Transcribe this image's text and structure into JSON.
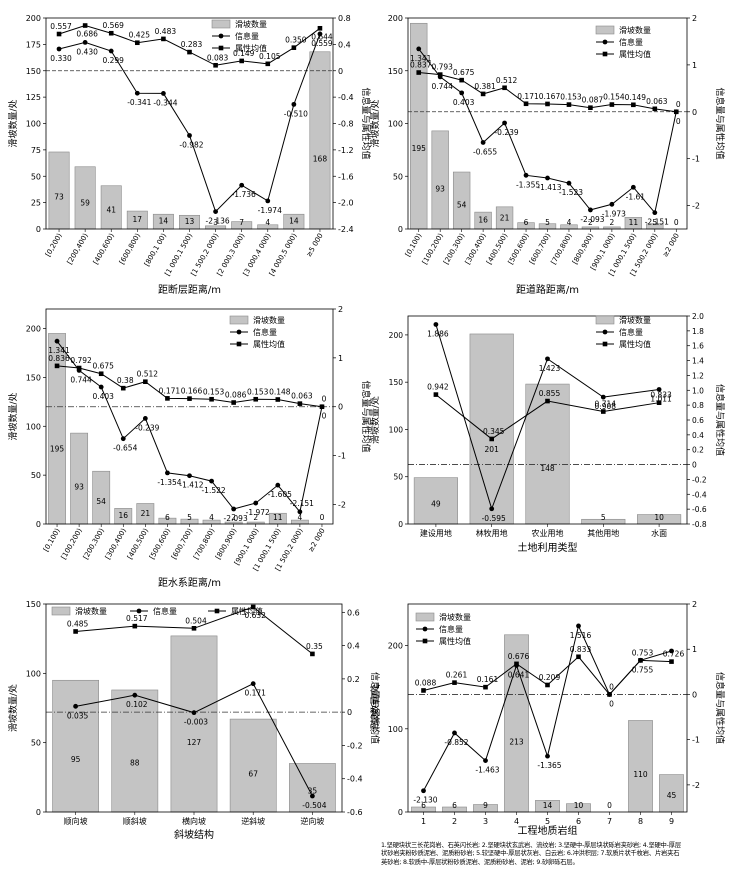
{
  "colors": {
    "bar": "#c4c4c4",
    "bar_stroke": "#8a8a8a",
    "line": "#000000",
    "refline": "#333333",
    "background": "#ffffff"
  },
  "legend_labels": {
    "bar": "滑坡数量",
    "info": "信息量",
    "attr": "属性均值"
  },
  "footnote": "1.坚硬块状三长花岗岩、石英闪长岩; 2.坚硬块状玄武岩、流纹岩; 3.坚硬中-厚层块状砾岩夹砂岩; 4.坚硬中-厚层状砂岩夹粉砂质泥岩、泥质粉砂岩; 5.较坚硬中-厚层状灰岩、白云岩; 6.冲洪积层; 7.软质片状千枚岩、片岩夹石英砂岩; 8.软质中-厚层状粉砂质泥岩、泥质粉砂岩、泥岩; 9.砂卵砾石层。",
  "chart_data": [
    {
      "type": "bar",
      "xlabel": "距断层距离/m",
      "ylabel": "滑坡数量/处",
      "y2label": "信息量与属性均值",
      "ylim": [
        0,
        200
      ],
      "yticks": [
        0,
        25,
        50,
        75,
        100,
        125,
        150,
        175,
        200
      ],
      "y2lim": [
        -2.4,
        0.8
      ],
      "y2ticks": [
        -2.4,
        -2.0,
        -1.6,
        -1.2,
        -0.8,
        -0.4,
        0,
        0.4,
        0.8
      ],
      "y2tick_labels": [
        "-2.4",
        "-2.0",
        "-1.6",
        "-1.2",
        "-0.8",
        "-0.4",
        "0",
        "0.4",
        "0.8"
      ],
      "legend_position": "top-right",
      "categories": [
        "[0,200)",
        "[200,400)",
        "[400,600)",
        "[600,800)",
        "[800,1 00)",
        "[1 000,1 500)",
        "[1 500,2 000)",
        "[2 000,3 000)",
        "[3 000,4 000)",
        "[4 000,5 000)",
        "≥5 000"
      ],
      "bar_values": [
        73,
        59,
        41,
        17,
        14,
        13,
        3,
        7,
        4,
        14,
        168
      ],
      "bar_value_labels": [
        "73",
        "59",
        "41",
        "17",
        "14",
        "13",
        "3",
        "7",
        "4",
        "14",
        "168"
      ],
      "info_values": [
        0.33,
        0.43,
        0.299,
        -0.341,
        -0.344,
        -0.982,
        -2.136,
        -1.736,
        -1.974,
        -0.51,
        0.559
      ],
      "info_labels": [
        "0.330",
        "0.430",
        "0.299",
        "-0.341",
        "-0.344",
        "-0.982",
        "-2.136",
        "-1.736",
        "-1.974",
        "-0.510",
        "0.559"
      ],
      "attr_values": [
        0.557,
        0.686,
        0.569,
        0.425,
        0.483,
        0.283,
        0.083,
        0.149,
        0.105,
        0.35,
        0.644
      ],
      "attr_labels": [
        "0.557",
        "0.686",
        "0.569",
        "0.425",
        "0.483",
        "0.283",
        "0.083",
        "0.149",
        "0.105",
        "0.350",
        "0.644"
      ],
      "ref_y2": 0
    },
    {
      "type": "bar",
      "xlabel": "距道路距离/m",
      "ylabel": "滑坡数量/处",
      "y2label": "信息量与属性均值",
      "ylim": [
        0,
        200
      ],
      "yticks": [
        0,
        50,
        100,
        150,
        200
      ],
      "y2lim": [
        -2.5,
        2
      ],
      "y2ticks": [
        -2,
        -1,
        0,
        1,
        2
      ],
      "y2tick_labels": [
        "-2",
        "-1",
        "0",
        "1",
        "2"
      ],
      "legend_position": "top-right",
      "categories": [
        "[0,100)",
        "[100,200)",
        "[200,300)",
        "[300,400)",
        "[400,500)",
        "[500,600)",
        "[600,700)",
        "[700,800)",
        "[800,900)",
        "[900,1 000)",
        "[1 000,1 500)",
        "[1 500,2 000)",
        "≥2 000"
      ],
      "bar_values": [
        195,
        93,
        54,
        16,
        21,
        6,
        5,
        4,
        2,
        2,
        11,
        5,
        0
      ],
      "bar_value_labels": [
        "195",
        "93",
        "54",
        "16",
        "21",
        "6",
        "5",
        "4",
        "2",
        "2",
        "11",
        "5",
        "0"
      ],
      "info_values": [
        1.341,
        0.744,
        0.403,
        -0.655,
        -0.239,
        -1.355,
        -1.413,
        -1.523,
        -2.093,
        -1.973,
        -1.61,
        -2.151,
        0
      ],
      "info_labels": [
        "1.341",
        "0.744",
        "0.403",
        "-0.655",
        "-0.239",
        "-1.355",
        "-1.413",
        "-1.523",
        "-2.093",
        "-1.973",
        "-1.61",
        "-2.151",
        "0"
      ],
      "attr_values": [
        0.837,
        0.793,
        0.675,
        0.381,
        0.512,
        0.171,
        0.167,
        0.153,
        0.087,
        0.154,
        0.149,
        0.063,
        0
      ],
      "attr_labels": [
        "0.837",
        "0.793",
        "0.675",
        "0.381",
        "0.512",
        "0.171",
        "0.167",
        "0.153",
        "0.087",
        "0.154",
        "0.149",
        "0.063",
        "0"
      ],
      "ref_y2": 0
    },
    {
      "type": "bar",
      "xlabel": "距水系距离/m",
      "ylabel": "滑坡数量/处",
      "y2label": "信息量与属性均值",
      "ylim": [
        0,
        220
      ],
      "yticks": [
        0,
        50,
        100,
        150,
        200
      ],
      "y2lim": [
        -2.4,
        2
      ],
      "y2ticks": [
        -2,
        -1,
        0,
        1,
        2
      ],
      "y2tick_labels": [
        "-2",
        "-1",
        "0",
        "1",
        "2"
      ],
      "legend_position": "top-right",
      "categories": [
        "[0,100)",
        "[100,200)",
        "[200,300)",
        "[300,400)",
        "[400,500)",
        "[500,600)",
        "[600,700)",
        "[700,800)",
        "[800,900)",
        "[900,1 000)",
        "[1 000,1 500)",
        "[1 500,2 000)",
        "≥2 000"
      ],
      "bar_values": [
        195,
        93,
        54,
        16,
        21,
        6,
        5,
        4,
        2,
        2,
        11,
        4,
        0
      ],
      "bar_value_labels": [
        "195",
        "93",
        "54",
        "16",
        "21",
        "6",
        "5",
        "4",
        "2",
        "2",
        "11",
        "4",
        "0"
      ],
      "info_values": [
        1.341,
        0.744,
        0.403,
        -0.654,
        -0.239,
        -1.354,
        -1.412,
        -1.522,
        -2.093,
        -1.972,
        -1.605,
        -2.151,
        0
      ],
      "info_labels": [
        "1.341",
        "0.744",
        "0.403",
        "-0.654",
        "-0.239",
        "-1.354",
        "-1.412",
        "-1.522",
        "-2.093",
        "-1.972",
        "-1.605",
        "-2.151",
        "0"
      ],
      "attr_values": [
        0.836,
        0.792,
        0.675,
        0.38,
        0.512,
        0.171,
        0.166,
        0.153,
        0.086,
        0.153,
        0.148,
        0.063,
        0
      ],
      "attr_labels": [
        "0.836",
        "0.792",
        "0.675",
        "0.38",
        "0.512",
        "0.171",
        "0.166",
        "0.153",
        "0.086",
        "0.153",
        "0.148",
        "0.063",
        "0"
      ],
      "ref_y2": 0
    },
    {
      "type": "bar",
      "xlabel": "土地利用类型",
      "ylabel": "滑坡数量/处",
      "y2label": "信息量与属性均值",
      "ylim": [
        0,
        220
      ],
      "yticks": [
        0,
        50,
        100,
        150,
        200
      ],
      "y2lim": [
        -0.8,
        2.0
      ],
      "y2ticks": [
        -0.8,
        -0.6,
        -0.4,
        -0.2,
        0,
        0.2,
        0.4,
        0.6,
        0.8,
        1.0,
        1.2,
        1.4,
        1.6,
        1.8,
        2.0
      ],
      "y2tick_labels": [
        "-0.8",
        "-0.6",
        "-0.4",
        "-0.2",
        "0",
        "0.2",
        "0.4",
        "0.6",
        "0.8",
        "1.0",
        "1.2",
        "1.4",
        "1.6",
        "1.8",
        "2.0"
      ],
      "legend_position": "top-right",
      "categories": [
        "建设用地",
        "林牧用地",
        "农业用地",
        "其他用地",
        "水面"
      ],
      "bar_values": [
        49,
        201,
        148,
        5,
        10
      ],
      "bar_value_labels": [
        "49",
        "201",
        "148",
        "5",
        "10"
      ],
      "info_values": [
        1.886,
        -0.595,
        1.423,
        0.908,
        1.011
      ],
      "info_labels": [
        "1.886",
        "-0.595",
        "1.423",
        "0.908",
        "1.011"
      ],
      "attr_values": [
        0.942,
        0.345,
        0.855,
        0.714,
        0.833
      ],
      "attr_labels": [
        "0.942",
        "0.345",
        "0.855",
        "0.714",
        "0.833"
      ],
      "ref_y2": 0
    },
    {
      "type": "bar",
      "xlabel": "斜坡结构",
      "ylabel": "滑坡数量/处",
      "y2label": "信息量与属性均值",
      "ylim": [
        0,
        150
      ],
      "yticks": [
        0,
        50,
        100,
        150
      ],
      "y2lim": [
        -0.6,
        0.65
      ],
      "y2ticks": [
        -0.6,
        -0.4,
        -0.2,
        0,
        0.2,
        0.4,
        0.6
      ],
      "y2tick_labels": [
        "-0.6",
        "-0.4",
        "-0.2",
        "0",
        "0.2",
        "0.4",
        "0.6"
      ],
      "legend_position": "top",
      "categories": [
        "顺向坡",
        "顺斜坡",
        "横向坡",
        "逆斜坡",
        "逆向坡"
      ],
      "bar_values": [
        95,
        88,
        127,
        67,
        35
      ],
      "bar_value_labels": [
        "95",
        "88",
        "127",
        "67",
        "35"
      ],
      "info_values": [
        0.035,
        0.102,
        -0.003,
        0.171,
        -0.504
      ],
      "info_labels": [
        "0.035",
        "0.102",
        "-0.003",
        "0.171",
        "-0.504"
      ],
      "attr_values": [
        0.485,
        0.517,
        0.504,
        0.632,
        0.35
      ],
      "attr_labels": [
        "0.485",
        "0.517",
        "0.504",
        "0.632",
        "0.35"
      ],
      "ref_y2": 0
    },
    {
      "type": "bar",
      "xlabel": "工程地质岩组",
      "ylabel": "滑坡数量/处",
      "y2label": "信息量与属性均值",
      "ylim": [
        0,
        250
      ],
      "yticks": [
        0,
        100,
        200
      ],
      "y2lim": [
        -2.6,
        2
      ],
      "y2ticks": [
        -2,
        -1,
        0,
        1,
        2
      ],
      "y2tick_labels": [
        "-2",
        "-1",
        "0",
        "1",
        "2"
      ],
      "legend_position": "top-left",
      "categories": [
        "1",
        "2",
        "3",
        "4",
        "5",
        "6",
        "7",
        "8",
        "9"
      ],
      "bar_values": [
        6,
        6,
        9,
        213,
        14,
        10,
        0,
        110,
        45
      ],
      "bar_value_labels": [
        "6",
        "6",
        "9",
        "213",
        "14",
        "10",
        "0",
        "110",
        "45"
      ],
      "info_values": [
        -2.13,
        -0.852,
        -1.463,
        0.641,
        -1.365,
        1.516,
        0,
        0.755,
        0.961
      ],
      "info_labels": [
        "-2.130",
        "-0.852",
        "-1.463",
        "0.641",
        "-1.365",
        "1.516",
        "0",
        "0.755",
        ""
      ],
      "attr_values": [
        0.088,
        0.261,
        0.161,
        0.676,
        0.209,
        0.833,
        0,
        0.753,
        0.726
      ],
      "attr_labels": [
        "0.088",
        "0.261",
        "0.161",
        "0.676",
        "0.209",
        "0.833",
        "0",
        "0.753",
        "0.726"
      ],
      "ref_y2": 0
    }
  ]
}
